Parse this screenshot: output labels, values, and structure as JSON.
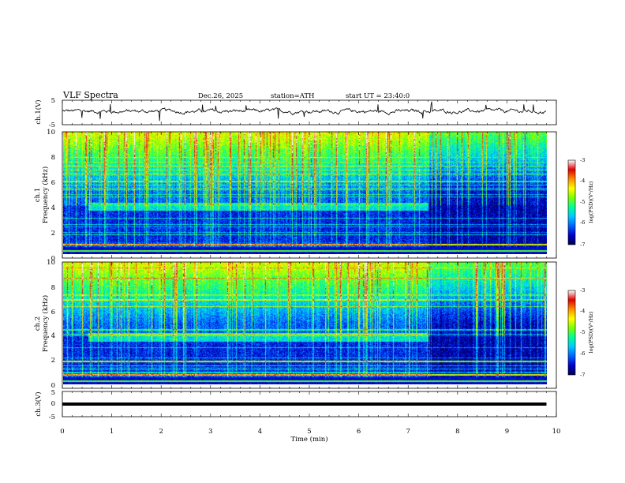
{
  "header": {
    "title": "VLF  Spectra",
    "date": "Dec.26, 2025",
    "station": "station=ATH",
    "start": "start  UT  =    23:40:0"
  },
  "colors": {
    "spectrogram_stops": [
      "#000050",
      "#0000c8",
      "#0060ff",
      "#00c8ff",
      "#00ff9a",
      "#7cff00",
      "#ffff00",
      "#ff8c00",
      "#e00000",
      "#ffffff"
    ],
    "line": "#000000"
  },
  "chart_data": [
    {
      "type": "line",
      "name": "ch1-waveform",
      "ylabel": "ch.1(V)",
      "ylim": [
        -5,
        5
      ],
      "yticks": [
        "5",
        "-5"
      ],
      "x_range_min": [
        0,
        9.8
      ],
      "baseline_v": 0.5,
      "noise_v": 0.9,
      "grid": false
    },
    {
      "type": "heatmap",
      "name": "ch1-spectrogram",
      "ylabel": [
        "ch.1",
        "Frequency  (kHz)"
      ],
      "xlim": [
        0,
        10
      ],
      "ylim": [
        0,
        10
      ],
      "yticks": [
        "0",
        "2",
        "4",
        "6",
        "8",
        "10"
      ],
      "time_extent_min": [
        0,
        9.8
      ],
      "colorbar": {
        "label": "log(PSD)(V²/Hz)",
        "ticks": [
          "-3",
          "-4",
          "-5",
          "-6",
          "-7"
        ],
        "range": [
          -7,
          -3
        ]
      },
      "features": {
        "band_khz": [
          3.6,
          4.2
        ],
        "band_time_min": [
          0.5,
          7.4
        ],
        "regime_change_min": 7.4,
        "hum_line_khz": 0.8
      }
    },
    {
      "type": "heatmap",
      "name": "ch2-spectrogram",
      "ylabel": [
        "ch.2",
        "Frequency  (kHz)"
      ],
      "xlim": [
        0,
        10
      ],
      "ylim": [
        0,
        10
      ],
      "yticks": [
        "0",
        "2",
        "4",
        "6",
        "8",
        "10"
      ],
      "time_extent_min": [
        0,
        9.8
      ],
      "colorbar": {
        "label": "log(PSD)(V²/Hz)",
        "ticks": [
          "-3",
          "-4",
          "-5",
          "-6",
          "-7"
        ],
        "range": [
          -7,
          -3
        ]
      },
      "features": {
        "band_khz": [
          3.5,
          4.2
        ],
        "band_time_min": [
          0.5,
          7.4
        ],
        "regime_change_min": 7.4,
        "hum_line_khz": 0.8
      }
    },
    {
      "type": "line",
      "name": "ch3-waveform",
      "ylabel": "ch.3(V)",
      "xlabel": "Time  (min)",
      "ylim": [
        -5,
        5
      ],
      "yticks": [
        "5",
        "0",
        "-5"
      ],
      "xticks": [
        "0",
        "1",
        "2",
        "3",
        "4",
        "5",
        "6",
        "7",
        "8",
        "9",
        "10"
      ],
      "xlim": [
        0,
        10
      ],
      "x_range_min": [
        0,
        9.8
      ],
      "value_v": 0.0,
      "grid": false
    }
  ]
}
